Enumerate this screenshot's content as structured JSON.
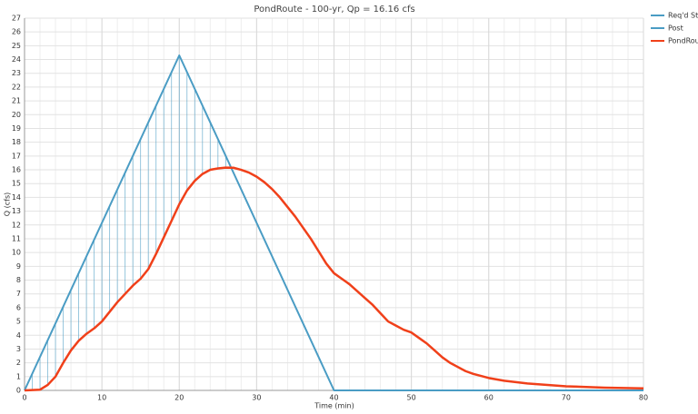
{
  "chart_data": {
    "type": "line",
    "title": "PondRoute - 100-yr, Qp = 16.16 cfs",
    "x_label": "Time (min)",
    "y_label": "Q (cfs)",
    "xlim": [
      0,
      80
    ],
    "xticks": [
      0,
      10,
      20,
      30,
      40,
      50,
      60,
      70,
      80
    ],
    "x_minor_step": 2,
    "ylim": [
      0,
      27
    ],
    "yticks": [
      0,
      1,
      2,
      3,
      4,
      5,
      6,
      7,
      8,
      9,
      10,
      11,
      12,
      13,
      14,
      15,
      16,
      17,
      18,
      19,
      20,
      21,
      22,
      23,
      24,
      25,
      26,
      27
    ],
    "grid": true,
    "legend": "top-right",
    "series": [
      {
        "name": "Req'd Stor",
        "color": "#4a9cc4",
        "style": "hatch",
        "x": [
          1,
          2,
          3,
          4,
          5,
          6,
          7,
          8,
          9,
          10,
          11,
          12,
          13,
          14,
          15,
          16,
          17,
          18,
          19,
          20,
          21,
          22,
          23,
          24,
          25,
          26
        ],
        "high": [
          1.2,
          2.4,
          3.6,
          4.9,
          6.1,
          7.3,
          8.5,
          9.7,
          10.9,
          12.2,
          13.4,
          14.6,
          15.8,
          17.0,
          18.2,
          19.4,
          20.7,
          21.9,
          23.1,
          24.3,
          23.1,
          21.9,
          20.7,
          19.4,
          18.2,
          17.0
        ],
        "low": [
          0,
          0.05,
          0.4,
          1.0,
          2.0,
          2.9,
          3.6,
          4.1,
          4.5,
          5.0,
          5.7,
          6.4,
          7.0,
          7.6,
          8.1,
          8.8,
          9.9,
          11.1,
          12.3,
          13.5,
          14.5,
          15.2,
          15.7,
          16.0,
          16.1,
          16.16
        ]
      },
      {
        "name": "Post",
        "color": "#4a9cc4",
        "style": "line",
        "x": [
          0,
          20,
          40,
          80
        ],
        "values": [
          0,
          24.3,
          0,
          0
        ]
      },
      {
        "name": "PondRoute",
        "color": "#f0401a",
        "style": "line",
        "x": [
          0,
          2,
          3,
          4,
          5,
          6,
          7,
          8,
          9,
          10,
          11,
          12,
          13,
          14,
          15,
          16,
          17,
          18,
          19,
          20,
          21,
          22,
          23,
          24,
          25,
          26,
          27,
          28,
          29,
          30,
          31,
          32,
          33,
          34,
          35,
          36,
          37,
          38,
          39,
          40,
          41,
          42,
          43,
          44,
          45,
          46,
          47,
          48,
          49,
          50,
          51,
          52,
          53,
          54,
          55,
          56,
          57,
          58,
          60,
          62,
          65,
          70,
          75,
          80
        ],
        "values": [
          0,
          0.05,
          0.4,
          1.0,
          2.0,
          2.9,
          3.6,
          4.1,
          4.5,
          5.0,
          5.7,
          6.4,
          7.0,
          7.6,
          8.1,
          8.8,
          9.9,
          11.1,
          12.3,
          13.5,
          14.5,
          15.2,
          15.7,
          16.0,
          16.1,
          16.16,
          16.15,
          16.0,
          15.8,
          15.5,
          15.1,
          14.6,
          14.0,
          13.3,
          12.6,
          11.8,
          11.0,
          10.1,
          9.2,
          8.5,
          8.1,
          7.7,
          7.2,
          6.7,
          6.2,
          5.6,
          5.0,
          4.7,
          4.4,
          4.2,
          3.8,
          3.4,
          2.9,
          2.4,
          2.0,
          1.7,
          1.4,
          1.2,
          0.9,
          0.7,
          0.5,
          0.3,
          0.2,
          0.15
        ]
      }
    ]
  }
}
